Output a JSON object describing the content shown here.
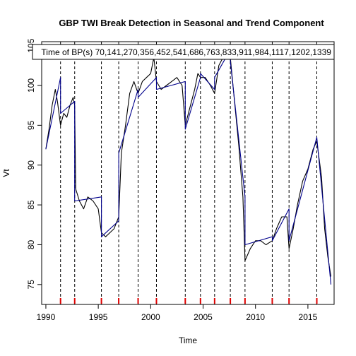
{
  "chart_data": {
    "type": "line",
    "title": "GBP TWI Break Detection in Seasonal and Trend Component",
    "xlabel": "Time",
    "ylabel": "Vt",
    "legend_text": "Time of BP(s) 70,141,270,356,452,541,686,763,833,911,984,1117,1202,1339",
    "xlim": [
      1989.6,
      2017.5
    ],
    "ylim": [
      72.5,
      105.5
    ],
    "x_ticks": [
      1990,
      1995,
      2000,
      2005,
      2010,
      2015
    ],
    "y_ticks": [
      75,
      80,
      85,
      90,
      95,
      100,
      105
    ],
    "break_dates": [
      1991.4,
      1992.75,
      1995.3,
      1996.95,
      1998.8,
      2000.55,
      2003.3,
      2004.75,
      2006.1,
      2007.6,
      2009.0,
      2011.6,
      2013.2,
      2015.85
    ],
    "series": [
      {
        "name": "Vt",
        "color": "#000000",
        "points": [
          [
            1990.0,
            92.0
          ],
          [
            1990.3,
            94.5
          ],
          [
            1990.6,
            97.5
          ],
          [
            1990.9,
            99.5
          ],
          [
            1991.1,
            98.0
          ],
          [
            1991.4,
            95.0
          ],
          [
            1991.7,
            96.5
          ],
          [
            1992.0,
            96.0
          ],
          [
            1992.3,
            97.5
          ],
          [
            1992.6,
            98.5
          ],
          [
            1992.75,
            97.5
          ],
          [
            1992.85,
            87.0
          ],
          [
            1993.2,
            85.5
          ],
          [
            1993.6,
            84.5
          ],
          [
            1994.0,
            86.0
          ],
          [
            1994.5,
            85.5
          ],
          [
            1995.0,
            84.5
          ],
          [
            1995.3,
            81.5
          ],
          [
            1995.7,
            81.0
          ],
          [
            1996.1,
            81.5
          ],
          [
            1996.5,
            82.0
          ],
          [
            1996.95,
            83.5
          ],
          [
            1997.2,
            91.5
          ],
          [
            1997.6,
            95.0
          ],
          [
            1998.0,
            99.0
          ],
          [
            1998.4,
            100.5
          ],
          [
            1998.8,
            99.0
          ],
          [
            1999.2,
            100.5
          ],
          [
            1999.6,
            101.0
          ],
          [
            2000.0,
            101.5
          ],
          [
            2000.3,
            103.5
          ],
          [
            2000.55,
            100.5
          ],
          [
            2001.0,
            99.5
          ],
          [
            2001.5,
            100.0
          ],
          [
            2002.0,
            100.5
          ],
          [
            2002.5,
            101.0
          ],
          [
            2003.0,
            100.0
          ],
          [
            2003.3,
            95.0
          ],
          [
            2003.7,
            97.0
          ],
          [
            2004.2,
            99.5
          ],
          [
            2004.5,
            101.5
          ],
          [
            2004.75,
            101.0
          ],
          [
            2005.2,
            101.0
          ],
          [
            2005.7,
            100.0
          ],
          [
            2006.1,
            99.0
          ],
          [
            2006.5,
            102.5
          ],
          [
            2006.9,
            103.5
          ],
          [
            2007.3,
            104.5
          ],
          [
            2007.6,
            103.5
          ],
          [
            2008.0,
            98.0
          ],
          [
            2008.4,
            92.5
          ],
          [
            2008.8,
            86.0
          ],
          [
            2009.0,
            78.0
          ],
          [
            2009.5,
            79.5
          ],
          [
            2010.0,
            80.5
          ],
          [
            2010.5,
            80.5
          ],
          [
            2011.0,
            80.0
          ],
          [
            2011.6,
            80.5
          ],
          [
            2012.0,
            82.0
          ],
          [
            2012.5,
            83.5
          ],
          [
            2013.0,
            83.5
          ],
          [
            2013.2,
            79.5
          ],
          [
            2013.6,
            82.0
          ],
          [
            2014.0,
            85.0
          ],
          [
            2014.5,
            88.0
          ],
          [
            2015.0,
            89.5
          ],
          [
            2015.5,
            92.0
          ],
          [
            2015.85,
            93.0
          ],
          [
            2016.3,
            88.5
          ],
          [
            2016.6,
            82.0
          ],
          [
            2016.9,
            78.5
          ],
          [
            2017.2,
            76.0
          ]
        ]
      },
      {
        "name": "Fitted trend",
        "color": "#00008B",
        "points": [
          [
            1990.0,
            92.0
          ],
          [
            1991.4,
            101.0
          ],
          [
            1991.4,
            96.5
          ],
          [
            1992.75,
            98.0
          ],
          [
            1992.75,
            85.5
          ],
          [
            1995.3,
            86.0
          ],
          [
            1995.3,
            81.0
          ],
          [
            1996.95,
            83.0
          ],
          [
            1996.95,
            91.5
          ],
          [
            1998.8,
            99.5
          ],
          [
            1998.8,
            98.5
          ],
          [
            2000.55,
            101.0
          ],
          [
            2000.55,
            99.5
          ],
          [
            2003.3,
            100.5
          ],
          [
            2003.3,
            94.5
          ],
          [
            2004.75,
            101.0
          ],
          [
            2004.75,
            101.5
          ],
          [
            2006.1,
            99.5
          ],
          [
            2006.1,
            101.0
          ],
          [
            2007.6,
            104.5
          ],
          [
            2007.6,
            103.0
          ],
          [
            2009.0,
            86.0
          ],
          [
            2009.0,
            80.0
          ],
          [
            2011.6,
            81.0
          ],
          [
            2011.6,
            80.5
          ],
          [
            2013.2,
            84.5
          ],
          [
            2013.2,
            80.5
          ],
          [
            2015.85,
            93.5
          ],
          [
            2015.85,
            93.5
          ],
          [
            2017.2,
            75.0
          ]
        ]
      }
    ]
  }
}
